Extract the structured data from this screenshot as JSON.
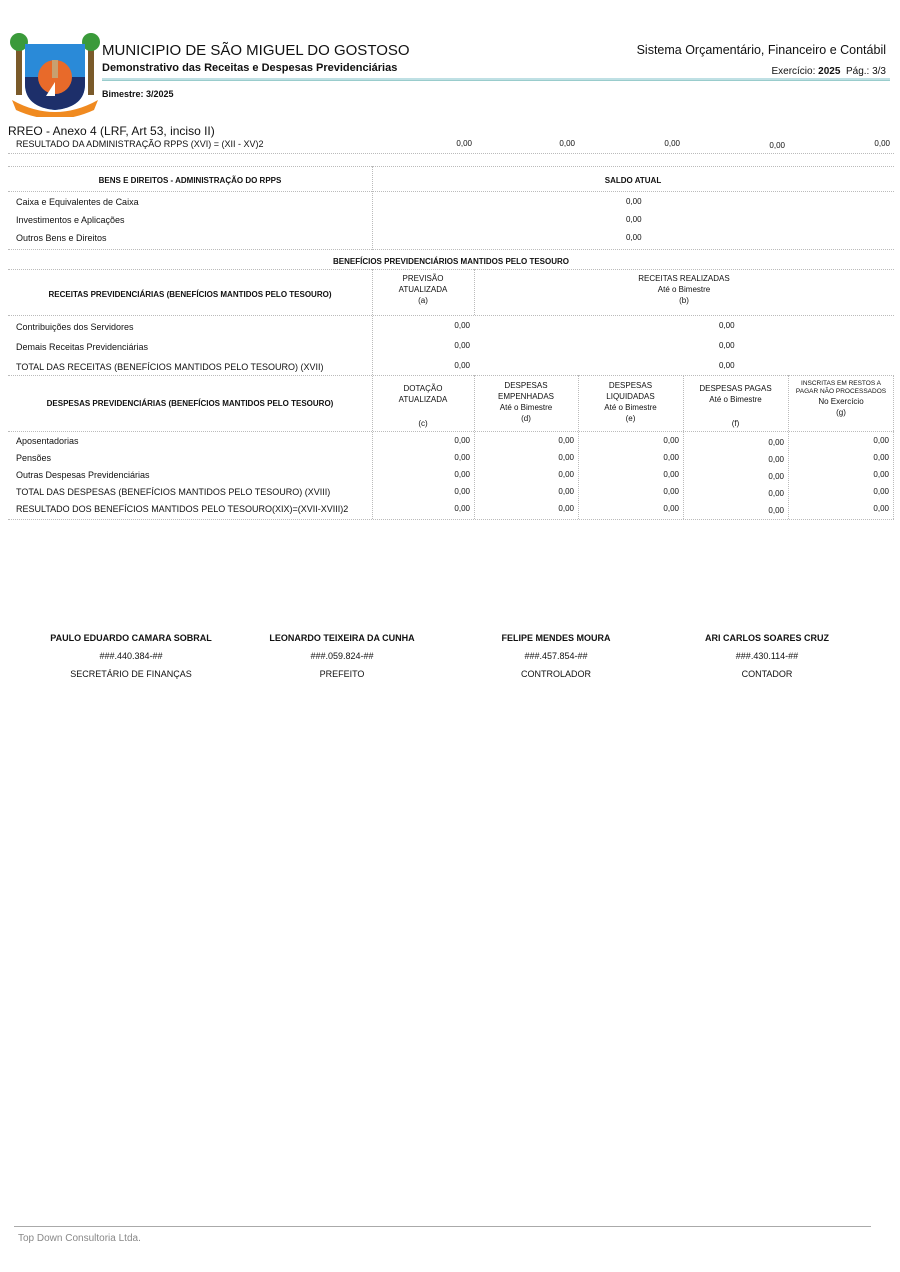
{
  "header": {
    "municipality": "MUNICIPIO DE SÃO MIGUEL DO GOSTOSO",
    "subtitle": "Demonstrativo das Receitas e Despesas Previdenciárias",
    "bimestre": "Bimestre: 3/2025",
    "system": "Sistema Orçamentário, Financeiro e Contábil",
    "exercicio_label": "Exercício:",
    "exercicio": "2025",
    "page": "Pág.: 3/3",
    "logo_text": "SÃO MIGUEL DO GOSTOSO"
  },
  "annex": "RREO - Anexo 4 (LRF, Art 53, inciso II)",
  "resultado_rpps": {
    "label": "RESULTADO DA ADMINISTRAÇÃO RPPS (XVI) = (XII - XV)2",
    "values": [
      "0,00",
      "0,00",
      "0,00",
      "0,00",
      "0,00"
    ]
  },
  "bens": {
    "header": "BENS E DIREITOS - ADMINISTRAÇÃO DO RPPS",
    "saldo": "SALDO ATUAL",
    "rows": [
      {
        "label": "Caixa e Equivalentes de Caixa",
        "value": "0,00"
      },
      {
        "label": "Investimentos e Aplicações",
        "value": "0,00"
      },
      {
        "label": "Outros Bens e Direitos",
        "value": "0,00"
      }
    ]
  },
  "tesouro_title": "BENEFÍCIOS PREVIDENCIÁRIOS MANTIDOS PELO TESOURO",
  "receitas": {
    "header": "RECEITAS PREVIDENCIÁRIAS (BENEFÍCIOS MANTIDOS PELO TESOURO)",
    "col_a": [
      "PREVISÃO",
      "ATUALIZADA",
      "(a)"
    ],
    "col_b": [
      "RECEITAS REALIZADAS",
      "Até o Bimestre",
      "(b)"
    ],
    "rows": [
      {
        "label": "Contribuições dos Servidores",
        "a": "0,00",
        "b": "0,00"
      },
      {
        "label": "Demais Receitas Previdenciárias",
        "a": "0,00",
        "b": "0,00"
      },
      {
        "label": "TOTAL DAS RECEITAS (BENEFÍCIOS MANTIDOS PELO TESOURO) (XVII)",
        "a": "0,00",
        "b": "0,00"
      }
    ]
  },
  "despesas": {
    "header": "DESPESAS PREVIDENCIÁRIAS (BENEFÍCIOS MANTIDOS PELO TESOURO)",
    "cols": [
      [
        "DOTAÇÃO",
        "ATUALIZADA",
        "",
        "(c)"
      ],
      [
        "DESPESAS",
        "EMPENHADAS",
        "Até o Bimestre",
        "(d)"
      ],
      [
        "DESPESAS",
        "LIQUIDADAS",
        "Até o Bimestre",
        "(e)"
      ],
      [
        "DESPESAS PAGAS",
        "Até o Bimestre",
        "",
        "(f)"
      ],
      [
        "INSCRITAS EM RESTOS A PAGAR NÃO PROCESSADOS",
        "No Exercício",
        "(g)"
      ]
    ],
    "rows": [
      {
        "label": "Aposentadorias",
        "values": [
          "0,00",
          "0,00",
          "0,00",
          "0,00",
          "0,00"
        ]
      },
      {
        "label": "Pensões",
        "values": [
          "0,00",
          "0,00",
          "0,00",
          "0,00",
          "0,00"
        ]
      },
      {
        "label": "Outras Despesas Previdenciárias",
        "values": [
          "0,00",
          "0,00",
          "0,00",
          "0,00",
          "0,00"
        ]
      },
      {
        "label": "TOTAL DAS DESPESAS (BENEFÍCIOS MANTIDOS PELO TESOURO) (XVIII)",
        "values": [
          "0,00",
          "0,00",
          "0,00",
          "0,00",
          "0,00"
        ]
      },
      {
        "label": "RESULTADO DOS BENEFÍCIOS MANTIDOS PELO TESOURO(XIX)=(XVII-XVIII)2",
        "values": [
          "0,00",
          "0,00",
          "0,00",
          "0,00",
          "0,00"
        ]
      }
    ]
  },
  "signatures": [
    {
      "name": "PAULO EDUARDO CAMARA SOBRAL",
      "doc": "###.440.384-##",
      "role": "SECRETÁRIO DE FINANÇAS"
    },
    {
      "name": "LEONARDO TEIXEIRA DA CUNHA",
      "doc": "###.059.824-##",
      "role": "PREFEITO"
    },
    {
      "name": "FELIPE MENDES MOURA",
      "doc": "###.457.854-##",
      "role": "CONTROLADOR"
    },
    {
      "name": "ARI CARLOS SOARES CRUZ",
      "doc": "###.430.114-##",
      "role": "CONTADOR"
    }
  ],
  "footer": "Top Down Consultoria Ltda."
}
